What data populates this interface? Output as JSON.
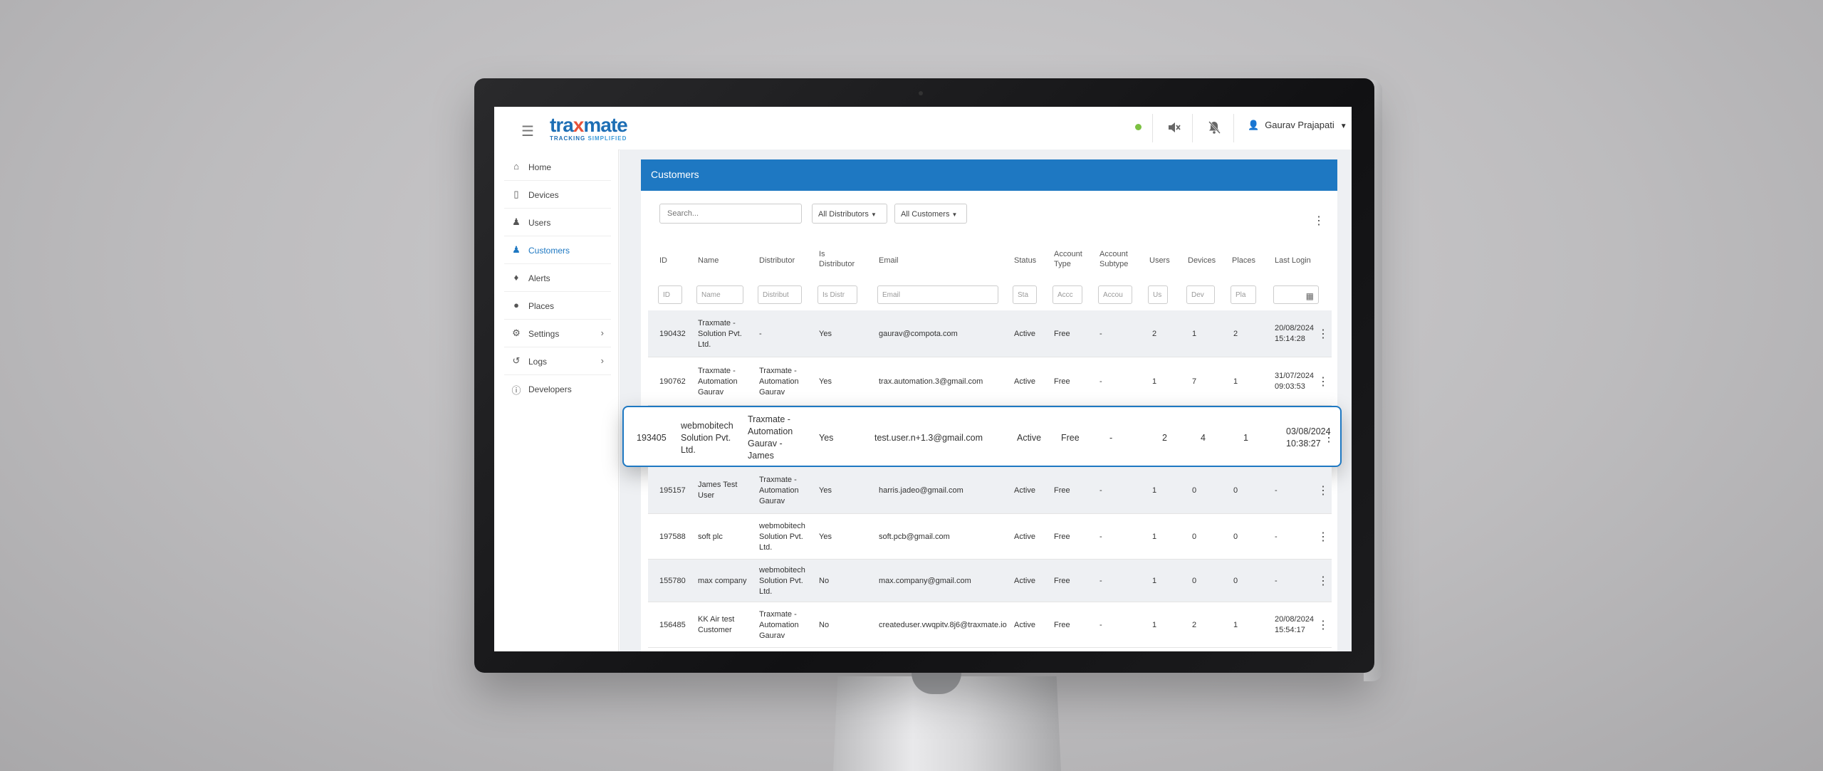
{
  "app": {
    "logo_main_a": "tra",
    "logo_main_x": "x",
    "logo_main_b": "mate",
    "logo_sub_a": "TRACKING ",
    "logo_sub_b": "SIMPLIFIED",
    "menu_icon": "hamburger-icon",
    "user_name": "Gaurav Prajapati",
    "status_color": "#7cc142",
    "accent_color": "#1e78c2"
  },
  "sidebar": {
    "items": [
      {
        "label": "Home",
        "icon": "home-icon"
      },
      {
        "label": "Devices",
        "icon": "device-icon"
      },
      {
        "label": "Users",
        "icon": "users-icon"
      },
      {
        "label": "Customers",
        "icon": "customers-icon",
        "active": true
      },
      {
        "label": "Alerts",
        "icon": "bell-icon"
      },
      {
        "label": "Places",
        "icon": "map-pin-icon"
      },
      {
        "label": "Settings",
        "icon": "gear-icon"
      },
      {
        "label": "Logs",
        "icon": "history-icon"
      },
      {
        "label": "Developers",
        "icon": "info-icon"
      }
    ]
  },
  "panel": {
    "title": "Customers",
    "search_placeholder": "Search...",
    "distributor_filter": "All Distributors",
    "customer_filter": "All Customers"
  },
  "table": {
    "headers": {
      "id": "ID",
      "name": "Name",
      "distributor": "Distributor",
      "is_distributor_1": "Is",
      "is_distributor_2": "Distributor",
      "email": "Email",
      "status": "Status",
      "account_type_1": "Account",
      "account_type_2": "Type",
      "account_subtype_1": "Account",
      "account_subtype_2": "Subtype",
      "users": "Users",
      "devices": "Devices",
      "places": "Places",
      "last_login": "Last Login"
    },
    "filters": {
      "id": "ID",
      "name": "Name",
      "distributor": "Distribut",
      "is_distributor": "Is Distr",
      "email": "Email",
      "status": "Sta",
      "account_type": "Accc",
      "account_subtype": "Accou",
      "users": "Us",
      "devices": "Dev",
      "places": "Pla"
    },
    "rows": [
      {
        "id": "190432",
        "name": [
          "Traxmate -",
          "Solution Pvt.",
          "Ltd."
        ],
        "distributor": [
          "-"
        ],
        "is_distributor": "Yes",
        "email": "gaurav@compota.com",
        "status": "Active",
        "account_type": "Free",
        "account_subtype": "-",
        "users": "2",
        "devices": "1",
        "places": "2",
        "last_login": [
          "20/08/2024",
          "15:14:28"
        ]
      },
      {
        "id": "190762",
        "name": [
          "Traxmate -",
          "Automation",
          "Gaurav"
        ],
        "distributor": [
          "Traxmate -",
          "Automation",
          "Gaurav"
        ],
        "is_distributor": "Yes",
        "email": "trax.automation.3@gmail.com",
        "status": "Active",
        "account_type": "Free",
        "account_subtype": "-",
        "users": "1",
        "devices": "7",
        "places": "1",
        "last_login": [
          "31/07/2024",
          "09:03:53"
        ]
      },
      {
        "id": "193405",
        "name": [
          "webmobitech",
          "Solution Pvt.",
          "Ltd."
        ],
        "distributor": [
          "Traxmate -",
          "Automation",
          "Gaurav -",
          "James"
        ],
        "is_distributor": "Yes",
        "email": "test.user.n+1.3@gmail.com",
        "status": "Active",
        "account_type": "Free",
        "account_subtype": "-",
        "users": "2",
        "devices": "4",
        "places": "1",
        "last_login": [
          "03/08/2024",
          "10:38:27"
        ]
      },
      {
        "id": "195157",
        "name": [
          "James Test",
          "User"
        ],
        "distributor": [
          "Traxmate -",
          "Automation",
          "Gaurav"
        ],
        "is_distributor": "Yes",
        "email": "harris.jadeo@gmail.com",
        "status": "Active",
        "account_type": "Free",
        "account_subtype": "-",
        "users": "1",
        "devices": "0",
        "places": "0",
        "last_login": [
          "-"
        ]
      },
      {
        "id": "197588",
        "name": [
          "soft plc"
        ],
        "distributor": [
          "webmobitech",
          "Solution Pvt.",
          "Ltd."
        ],
        "is_distributor": "Yes",
        "email": "soft.pcb@gmail.com",
        "status": "Active",
        "account_type": "Free",
        "account_subtype": "-",
        "users": "1",
        "devices": "0",
        "places": "0",
        "last_login": [
          "-"
        ]
      },
      {
        "id": "155780",
        "name": [
          "max company"
        ],
        "distributor": [
          "webmobitech",
          "Solution Pvt.",
          "Ltd."
        ],
        "is_distributor": "No",
        "email": "max.company@gmail.com",
        "status": "Active",
        "account_type": "Free",
        "account_subtype": "-",
        "users": "1",
        "devices": "0",
        "places": "0",
        "last_login": [
          "-"
        ]
      },
      {
        "id": "156485",
        "name": [
          "KK Air test",
          "Customer"
        ],
        "distributor": [
          "Traxmate -",
          "Automation",
          "Gaurav"
        ],
        "is_distributor": "No",
        "email": "createduser.vwqpitv.8j6@traxmate.io",
        "status": "Active",
        "account_type": "Free",
        "account_subtype": "-",
        "users": "1",
        "devices": "2",
        "places": "1",
        "last_login": [
          "20/08/2024",
          "15:54:17"
        ]
      }
    ]
  }
}
